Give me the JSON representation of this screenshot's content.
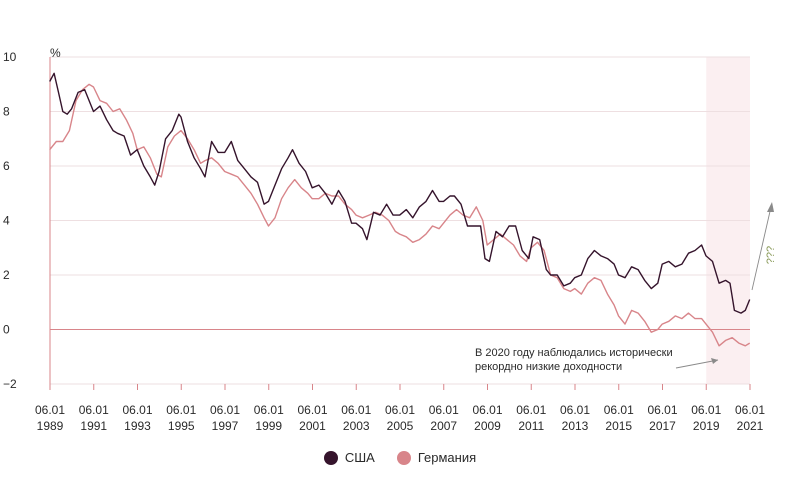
{
  "chart_data": {
    "type": "line",
    "ylabel": "%",
    "ylim": [
      -2,
      10
    ],
    "yticks": [
      "10",
      "8",
      "6",
      "4",
      "2",
      "0",
      "−2"
    ],
    "xlim": [
      "1989-01-06",
      "2021-01-06"
    ],
    "xticks": [
      {
        "day": "06.01",
        "year": "1989"
      },
      {
        "day": "06.01",
        "year": "1991"
      },
      {
        "day": "06.01",
        "year": "1993"
      },
      {
        "day": "06.01",
        "year": "1995"
      },
      {
        "day": "06.01",
        "year": "1997"
      },
      {
        "day": "06.01",
        "year": "1999"
      },
      {
        "day": "06.01",
        "year": "2001"
      },
      {
        "day": "06.01",
        "year": "2003"
      },
      {
        "day": "06.01",
        "year": "2005"
      },
      {
        "day": "06.01",
        "year": "2007"
      },
      {
        "day": "06.01",
        "year": "2009"
      },
      {
        "day": "06.01",
        "year": "2011"
      },
      {
        "day": "06.01",
        "year": "2013"
      },
      {
        "day": "06.01",
        "year": "2015"
      },
      {
        "day": "06.01",
        "year": "2017"
      },
      {
        "day": "06.01",
        "year": "2019"
      },
      {
        "day": "06.01",
        "year": "2021"
      }
    ],
    "highlight_range": [
      "2019-01-06",
      "2021-01-06"
    ],
    "series": [
      {
        "name": "США",
        "color": "#35142c",
        "x": [
          1989.0,
          1989.2,
          1989.4,
          1989.6,
          1989.8,
          1990.0,
          1990.3,
          1990.6,
          1990.8,
          1991.0,
          1991.3,
          1991.6,
          1991.9,
          1992.1,
          1992.4,
          1992.7,
          1993.0,
          1993.3,
          1993.6,
          1993.8,
          1994.0,
          1994.3,
          1994.6,
          1994.9,
          1995.0,
          1995.3,
          1995.6,
          1995.9,
          1996.1,
          1996.4,
          1996.7,
          1997.0,
          1997.3,
          1997.6,
          1997.9,
          1998.2,
          1998.5,
          1998.8,
          1999.0,
          1999.3,
          1999.6,
          1999.9,
          2000.1,
          2000.4,
          2000.7,
          2001.0,
          2001.3,
          2001.6,
          2001.9,
          2002.2,
          2002.5,
          2002.8,
          2003.0,
          2003.3,
          2003.5,
          2003.8,
          2004.1,
          2004.4,
          2004.7,
          2005.0,
          2005.3,
          2005.6,
          2005.9,
          2006.2,
          2006.5,
          2006.8,
          2007.0,
          2007.3,
          2007.5,
          2007.8,
          2008.1,
          2008.4,
          2008.7,
          2008.9,
          2009.1,
          2009.4,
          2009.7,
          2010.0,
          2010.3,
          2010.6,
          2010.9,
          2011.1,
          2011.4,
          2011.7,
          2011.9,
          2012.2,
          2012.5,
          2012.8,
          2013.0,
          2013.3,
          2013.6,
          2013.9,
          2014.2,
          2014.5,
          2014.8,
          2015.0,
          2015.3,
          2015.6,
          2015.9,
          2016.2,
          2016.5,
          2016.8,
          2017.0,
          2017.3,
          2017.6,
          2017.9,
          2018.2,
          2018.5,
          2018.8,
          2019.0,
          2019.3,
          2019.6,
          2019.9,
          2020.1,
          2020.3,
          2020.6,
          2020.8,
          2021.0
        ],
        "values": [
          9.1,
          9.4,
          8.7,
          8.0,
          7.9,
          8.1,
          8.7,
          8.8,
          8.4,
          8.0,
          8.2,
          7.7,
          7.3,
          7.2,
          7.1,
          6.4,
          6.6,
          6.0,
          5.6,
          5.3,
          5.8,
          7.0,
          7.3,
          7.9,
          7.8,
          6.9,
          6.3,
          5.9,
          5.6,
          6.9,
          6.5,
          6.5,
          6.9,
          6.2,
          5.9,
          5.6,
          5.4,
          4.6,
          4.7,
          5.3,
          5.9,
          6.3,
          6.6,
          6.1,
          5.8,
          5.2,
          5.3,
          5.0,
          4.6,
          5.1,
          4.7,
          3.9,
          3.9,
          3.7,
          3.3,
          4.3,
          4.2,
          4.6,
          4.2,
          4.2,
          4.4,
          4.1,
          4.5,
          4.7,
          5.1,
          4.7,
          4.7,
          4.9,
          4.9,
          4.6,
          3.8,
          3.8,
          3.8,
          2.6,
          2.5,
          3.6,
          3.4,
          3.8,
          3.8,
          2.9,
          2.6,
          3.4,
          3.3,
          2.2,
          2.0,
          2.0,
          1.6,
          1.7,
          1.9,
          2.0,
          2.6,
          2.9,
          2.7,
          2.6,
          2.4,
          2.0,
          1.9,
          2.3,
          2.2,
          1.8,
          1.5,
          1.7,
          2.4,
          2.5,
          2.3,
          2.4,
          2.8,
          2.9,
          3.1,
          2.7,
          2.5,
          1.7,
          1.8,
          1.7,
          0.7,
          0.6,
          0.7,
          1.1
        ]
      },
      {
        "name": "Германия",
        "color": "#d8858a",
        "x": [
          1989.0,
          1989.3,
          1989.6,
          1989.9,
          1990.2,
          1990.5,
          1990.8,
          1991.0,
          1991.3,
          1991.6,
          1991.9,
          1992.2,
          1992.5,
          1992.8,
          1993.0,
          1993.3,
          1993.6,
          1993.9,
          1994.1,
          1994.4,
          1994.7,
          1995.0,
          1995.3,
          1995.6,
          1995.9,
          1996.1,
          1996.4,
          1996.7,
          1997.0,
          1997.3,
          1997.6,
          1997.9,
          1998.2,
          1998.5,
          1998.8,
          1999.0,
          1999.3,
          1999.6,
          1999.9,
          2000.2,
          2000.5,
          2000.8,
          2001.0,
          2001.3,
          2001.6,
          2001.9,
          2002.2,
          2002.5,
          2002.8,
          2003.0,
          2003.3,
          2003.6,
          2003.9,
          2004.2,
          2004.5,
          2004.8,
          2005.0,
          2005.3,
          2005.6,
          2005.9,
          2006.2,
          2006.5,
          2006.8,
          2007.0,
          2007.3,
          2007.6,
          2007.9,
          2008.2,
          2008.5,
          2008.8,
          2009.0,
          2009.3,
          2009.6,
          2009.9,
          2010.2,
          2010.5,
          2010.8,
          2011.0,
          2011.3,
          2011.6,
          2011.9,
          2012.2,
          2012.5,
          2012.8,
          2013.0,
          2013.3,
          2013.6,
          2013.9,
          2014.2,
          2014.5,
          2014.8,
          2015.0,
          2015.3,
          2015.6,
          2015.9,
          2016.2,
          2016.5,
          2016.8,
          2017.0,
          2017.3,
          2017.6,
          2017.9,
          2018.2,
          2018.5,
          2018.8,
          2019.0,
          2019.3,
          2019.6,
          2019.9,
          2020.2,
          2020.5,
          2020.8,
          2021.0
        ],
        "values": [
          6.6,
          6.9,
          6.9,
          7.3,
          8.4,
          8.8,
          9.0,
          8.9,
          8.4,
          8.3,
          8.0,
          8.1,
          7.7,
          7.2,
          6.6,
          6.7,
          6.3,
          5.7,
          5.6,
          6.7,
          7.1,
          7.3,
          7.0,
          6.6,
          6.1,
          6.2,
          6.3,
          6.1,
          5.8,
          5.7,
          5.6,
          5.3,
          5.0,
          4.6,
          4.1,
          3.8,
          4.1,
          4.8,
          5.2,
          5.5,
          5.2,
          5.0,
          4.8,
          4.8,
          5.0,
          4.9,
          4.9,
          4.6,
          4.4,
          4.2,
          4.1,
          4.2,
          4.3,
          4.2,
          4.0,
          3.6,
          3.5,
          3.4,
          3.2,
          3.3,
          3.5,
          3.8,
          3.7,
          3.9,
          4.2,
          4.4,
          4.2,
          4.1,
          4.5,
          4.0,
          3.1,
          3.3,
          3.5,
          3.3,
          3.1,
          2.7,
          2.5,
          3.0,
          3.2,
          2.9,
          2.0,
          1.9,
          1.5,
          1.4,
          1.5,
          1.3,
          1.7,
          1.9,
          1.8,
          1.3,
          0.9,
          0.5,
          0.2,
          0.7,
          0.6,
          0.3,
          -0.1,
          0.0,
          0.2,
          0.3,
          0.5,
          0.4,
          0.6,
          0.4,
          0.4,
          0.2,
          -0.1,
          -0.6,
          -0.4,
          -0.3,
          -0.5,
          -0.6,
          -0.5
        ]
      }
    ],
    "annotations": [
      {
        "id": "record-low",
        "lines": [
          "В 2020 году наблюдались исторически",
          "рекордно низкие доходности"
        ]
      },
      {
        "id": "question",
        "text": "???"
      }
    ]
  }
}
